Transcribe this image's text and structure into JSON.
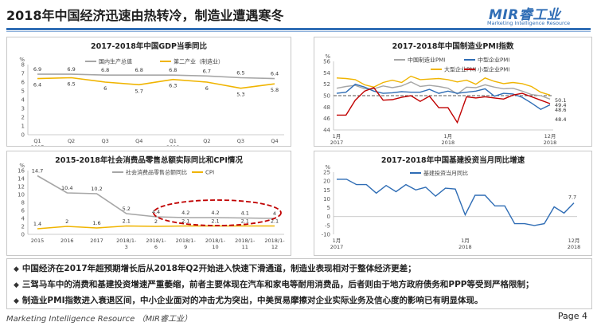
{
  "slide": {
    "title": "2018年中国经济迅速由热转冷，制造业遭遇寒冬",
    "logo_brand": "MIR睿工业",
    "logo_tagline": "Marketing Intelligence Resource",
    "footer_left": "Marketing Intelligence Resource （MIR睿工业）",
    "footer_right": "Page 4",
    "bullets": [
      "中国经济在2017年超预期增长后从2018年Q2开始进入快速下滑通道，制造业表现相对于整体经济更差；",
      "三驾马车中的消费和基建投资增速严重萎缩，前者主要体现在汽车和家电等耐用消费品，后者则由于地方政府债务和PPP等受到严格限制；",
      "制造业PMI指数进入衰退区间，中小企业面对的冲击尤为突出，中美贸易摩擦对企业实际业务及信心度的影响已有明显体现。"
    ]
  },
  "chart_data": [
    {
      "type": "line",
      "title": "2017-2018年中国GDP当季同比",
      "ylabel": "%",
      "categories": [
        "Q1 2017",
        "Q2",
        "Q3",
        "Q4",
        "Q1 2018",
        "Q2",
        "Q3",
        "Q4"
      ],
      "tick_labels": [
        [
          "Q1",
          "2017"
        ],
        [
          "Q2",
          ""
        ],
        [
          "Q3",
          ""
        ],
        [
          "Q4",
          ""
        ],
        [
          "Q1",
          "2018"
        ],
        [
          "Q2",
          ""
        ],
        [
          "Q3",
          ""
        ],
        [
          "Q4",
          ""
        ]
      ],
      "ylim": [
        0,
        8
      ],
      "yticks": [
        0,
        1,
        2,
        3,
        4,
        5,
        6,
        7,
        8
      ],
      "series": [
        {
          "name": "国内生产总值",
          "color": "#a6a6a6",
          "values": [
            6.9,
            6.9,
            6.8,
            6.8,
            6.8,
            6.7,
            6.5,
            6.4
          ]
        },
        {
          "name": "第二产业（制造业）",
          "color": "#f0b400",
          "values": [
            6.4,
            6.5,
            6.0,
            5.7,
            6.3,
            6.0,
            5.3,
            5.8
          ]
        }
      ]
    },
    {
      "type": "line",
      "title": "2017-2018年中国制造业PMI指数",
      "ylabel": "%",
      "x_tick_labels": [
        [
          "1月",
          "2017"
        ],
        [
          "1月",
          "2018"
        ],
        [
          "12月",
          "2018"
        ]
      ],
      "ylim": [
        44,
        56
      ],
      "yticks": [
        44,
        46,
        48,
        50,
        52,
        54,
        56
      ],
      "reference_line": 50,
      "series": [
        {
          "name": "中国制造业PMI",
          "color": "#a6a6a6",
          "values": [
            51.3,
            51.6,
            51.8,
            51.2,
            51.2,
            51.7,
            51.4,
            51.7,
            52.4,
            51.6,
            51.8,
            51.6,
            51.3,
            50.3,
            51.5,
            51.4,
            51.9,
            51.5,
            51.2,
            51.3,
            50.8,
            50.2,
            50.0,
            49.4
          ]
        },
        {
          "name": "中型企业PMI",
          "color": "#2f6db5",
          "values": [
            50.4,
            50.6,
            52.0,
            51.5,
            50.8,
            50.4,
            50.5,
            50.7,
            50.6,
            50.6,
            51.1,
            50.4,
            50.8,
            50.4,
            50.6,
            50.8,
            51.2,
            49.9,
            50.4,
            50.3,
            49.7,
            48.7,
            47.6,
            48.4
          ]
        },
        {
          "name": "大型企业PMI",
          "color": "#f0b400",
          "values": [
            53.1,
            53.0,
            52.8,
            51.9,
            51.5,
            52.3,
            52.7,
            52.3,
            53.4,
            52.8,
            52.9,
            53.0,
            52.8,
            52.4,
            52.7,
            52.0,
            53.1,
            52.5,
            52.1,
            52.3,
            52.1,
            51.6,
            50.6,
            50.1
          ]
        },
        {
          "name": "小型企业PMI",
          "color": "#c00000",
          "values": [
            46.6,
            46.6,
            49.2,
            50.8,
            51.4,
            49.2,
            49.3,
            49.7,
            50.0,
            49.0,
            49.9,
            47.9,
            47.9,
            45.3,
            49.8,
            49.6,
            49.8,
            49.6,
            49.4,
            50.1,
            50.4,
            49.8,
            49.2,
            48.6
          ]
        }
      ],
      "last_labels": [
        "50.1",
        "49.4",
        "48.6",
        "48.4"
      ]
    },
    {
      "type": "line",
      "title": "2015-2018年社会消费品零售总额实际同比和CPI情况",
      "ylabel": "%",
      "categories": [
        "2015",
        "2016",
        "2017",
        "2018/1-3",
        "2018/1-6",
        "2018/1-9",
        "2018/1-10",
        "2018/1-11",
        "2018/1-12"
      ],
      "tick_labels": [
        [
          "2015",
          ""
        ],
        [
          "2016",
          ""
        ],
        [
          "2017",
          ""
        ],
        [
          "2018/1-",
          "3"
        ],
        [
          "2018/1-",
          "6"
        ],
        [
          "2018/1-",
          "9"
        ],
        [
          "2018/1-",
          "10"
        ],
        [
          "2018/1-",
          "11"
        ],
        [
          "2018/1-",
          "12"
        ]
      ],
      "ylim": [
        0,
        16
      ],
      "yticks": [
        0,
        2,
        4,
        6,
        8,
        10,
        12,
        14,
        16
      ],
      "series": [
        {
          "name": "社会消费品零售总额同比",
          "color": "#a6a6a6",
          "values": [
            14.7,
            10.4,
            10.2,
            5.2,
            4.4,
            4.2,
            4.2,
            4.1,
            4.0
          ]
        },
        {
          "name": "CPI",
          "color": "#f0b400",
          "values": [
            1.4,
            2.0,
            1.6,
            2.1,
            2.0,
            2.1,
            2.1,
            2.1,
            2.1
          ]
        }
      ]
    },
    {
      "type": "line",
      "title": "2017-2018年中国基建投资当月同比增速",
      "ylabel": "%",
      "x_tick_labels": [
        [
          "1月",
          "2017"
        ],
        [
          "1月",
          "2018"
        ],
        [
          "12月",
          "2018"
        ]
      ],
      "ylim": [
        -10,
        25
      ],
      "yticks": [
        -10,
        -5,
        0,
        5,
        10,
        15,
        20,
        25
      ],
      "series": [
        {
          "name": "基建投资当月同比",
          "color": "#2f6db5",
          "values": [
            21.0,
            21.0,
            18.0,
            18.0,
            13.2,
            17.5,
            14.0,
            18.0,
            15.0,
            16.5,
            11.5,
            16.0,
            15.5,
            1.0,
            12.0,
            12.0,
            6.0,
            6.0,
            -4.0,
            -4.0,
            -5.0,
            -4.0,
            5.5,
            2.0,
            7.7
          ]
        }
      ],
      "last_label": "7.7"
    }
  ]
}
